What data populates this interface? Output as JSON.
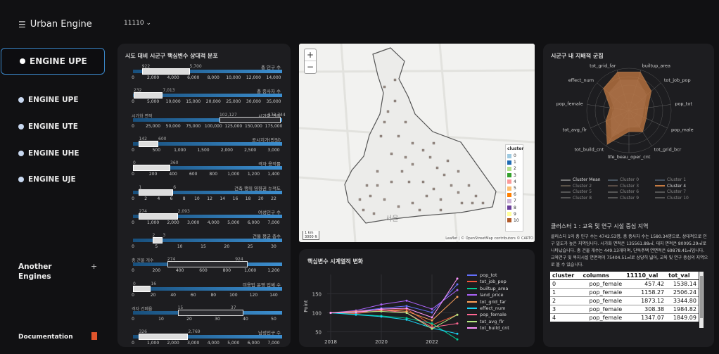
{
  "app": {
    "title": "Urban Engine",
    "code": "11110",
    "code_arrow": "⌄"
  },
  "nav": {
    "active": "ENGINE UPE",
    "items": [
      "ENGINE UPE",
      "ENGINE UTE",
      "ENGINE UHE",
      "ENGINE UJE"
    ],
    "another": "Another Engines",
    "another_plus": "+",
    "documentation": "Documentation"
  },
  "panel1": {
    "title": "시도 대비 시군구 핵심변수 상대적 분포",
    "rows": [
      {
        "label": "총 인구 수",
        "lo": "922",
        "hi": "5,700",
        "lo_frac": 0.06,
        "hi_frac": 0.38,
        "ticks": [
          "0",
          "2,000",
          "4,000",
          "6,000",
          "8,000",
          "10,000",
          "12,000",
          "14,000"
        ]
      },
      {
        "label": "총 종사자 수",
        "lo": "232",
        "hi": "7,013",
        "lo_frac": 0.005,
        "hi_frac": 0.2,
        "ticks": [
          "0",
          "5,000",
          "10,000",
          "15,000",
          "20,000",
          "25,000",
          "30,000",
          "35,000"
        ]
      },
      {
        "label": "시가화 면적",
        "lo": "",
        "hi": "173,744",
        "lo_frac": 0.0,
        "hi_frac": 0.0,
        "ticks": [
          "0",
          "25,000",
          "50,000",
          "75,000",
          "100,000",
          "125,000",
          "150,000",
          "175,000"
        ],
        "range_label": "102,127",
        "range_lo": 0.58,
        "range_hi": 0.99,
        "lead": "시가화 면적"
      },
      {
        "label": "공시지가(만원)",
        "lo": "142",
        "hi": "600",
        "lo_frac": 0.04,
        "hi_frac": 0.17,
        "ticks": [
          "0",
          "500",
          "1,000",
          "1,500",
          "2,000",
          "2,500",
          "3,000"
        ]
      },
      {
        "label": "격자 용적률",
        "lo": "0",
        "hi": "360",
        "lo_frac": 0.0,
        "hi_frac": 0.25,
        "ticks": [
          "0",
          "200",
          "400",
          "600",
          "800",
          "1,000",
          "1,200",
          "1,400"
        ]
      },
      {
        "label": "건축 행위 영향권 누적도",
        "lo": "1",
        "hi": "6",
        "lo_frac": 0.04,
        "hi_frac": 0.27,
        "ticks": [
          "0",
          "2",
          "4",
          "6",
          "8",
          "10",
          "12",
          "14",
          "16",
          "18",
          "20",
          "22"
        ]
      },
      {
        "label": "여성인구 수",
        "lo": "274",
        "hi": "2,093",
        "lo_frac": 0.04,
        "hi_frac": 0.3,
        "ticks": [
          "0",
          "1,000",
          "2,000",
          "3,000",
          "4,000",
          "5,000",
          "6,000",
          "7,000"
        ]
      },
      {
        "label": "건물 평균 층수",
        "lo": "2",
        "hi": "3",
        "lo_frac": 0.13,
        "hi_frac": 0.2,
        "ticks": [
          "0",
          "5",
          "10",
          "15",
          "20",
          "25",
          "30"
        ]
      },
      {
        "label": "",
        "lo": "",
        "hi": "924",
        "lo_frac": 0.0,
        "hi_frac": 0.0,
        "ticks": [
          "0",
          "200",
          "400",
          "600",
          "800",
          "1,000",
          "1,200"
        ],
        "range_label": "274",
        "range_lo": 0.23,
        "range_hi": 0.77,
        "lead": "총 건물 개수"
      },
      {
        "label": "미용업 운영 업체 수",
        "lo": "0",
        "hi": "16",
        "lo_frac": 0.0,
        "hi_frac": 0.12,
        "ticks": [
          "0",
          "20",
          "40",
          "60",
          "80",
          "100",
          "120",
          "140"
        ]
      },
      {
        "label": "",
        "lo": "",
        "hi": "37",
        "lo_frac": 0.0,
        "hi_frac": 0.0,
        "ticks": [
          "0",
          "10",
          "20",
          "30",
          "40",
          "50"
        ],
        "range_label": "15",
        "range_lo": 0.3,
        "range_hi": 0.74,
        "lead": "격자 건폐율"
      },
      {
        "label": "남성인구 수",
        "lo": "326",
        "hi": "2,769",
        "lo_frac": 0.04,
        "hi_frac": 0.37,
        "ticks": [
          "0",
          "1,000",
          "2,000",
          "3,000",
          "4,000",
          "5,000",
          "6,000",
          "7,000"
        ]
      }
    ]
  },
  "map": {
    "zoom_in": "+",
    "zoom_out": "−",
    "legend_title": "cluster",
    "legend": [
      "0",
      "1",
      "2",
      "3",
      "4",
      "5",
      "6",
      "7",
      "8",
      "9",
      "10"
    ],
    "legend_colors": [
      "#9ecae1",
      "#1f6bb4",
      "#b2df8a",
      "#33a02c",
      "#fb9a99",
      "#fdbf6f",
      "#ff7f00",
      "#cab2d6",
      "#6a3d9a",
      "#ffff99",
      "#b15928"
    ],
    "scale": "1 km\n3000 ft",
    "city": "서울",
    "attribution": "Leaflet | © OpenStreetMap contributors © CARTO"
  },
  "timeseries": {
    "title": "핵심변수 시계열적 변화",
    "ylabel": "Point",
    "yticks": [
      "150",
      "100",
      "50"
    ],
    "xticks": [
      "2018",
      "2020",
      "2022"
    ],
    "series": [
      {
        "name": "pop_tot",
        "color": "#636efa"
      },
      {
        "name": "tot_job_pop",
        "color": "#ef553b"
      },
      {
        "name": "builtup_area",
        "color": "#00cc96"
      },
      {
        "name": "land_price",
        "color": "#ab63fa"
      },
      {
        "name": "tot_grid_far",
        "color": "#ffa15a"
      },
      {
        "name": "effect_num",
        "color": "#19d3f3"
      },
      {
        "name": "pop_female",
        "color": "#ff6692"
      },
      {
        "name": "tot_avg_flr",
        "color": "#b6e880"
      },
      {
        "name": "tot_build_cnt",
        "color": "#ff97ff"
      }
    ]
  },
  "radar": {
    "title": "시군구 내 지배적 군집",
    "axes": [
      "builtup_area",
      "tot_job_pop",
      "pop_tot",
      "pop_male",
      "tot_grid_bcr",
      "life_beau_oper_cnt",
      "tot_build_cnt",
      "tot_avg_flr",
      "pop_female",
      "effect_num",
      "tot_grid_far"
    ],
    "legend": [
      {
        "name": "Cluster Mean",
        "color": "#777"
      },
      {
        "name": "Cluster 0",
        "color": "#4a5560"
      },
      {
        "name": "Cluster 1",
        "color": "#44505e"
      },
      {
        "name": "Cluster 2",
        "color": "#5a5248"
      },
      {
        "name": "Cluster 3",
        "color": "#584c46"
      },
      {
        "name": "Cluster 4",
        "color": "#c57a42"
      },
      {
        "name": "Cluster 5",
        "color": "#555"
      },
      {
        "name": "Cluster 6",
        "color": "#555"
      },
      {
        "name": "Cluster 7",
        "color": "#555"
      },
      {
        "name": "Cluster 8",
        "color": "#555"
      },
      {
        "name": "Cluster 9",
        "color": "#555"
      },
      {
        "name": "Cluster 10",
        "color": "#555"
      }
    ]
  },
  "cluster_info": {
    "title": "클러스터 1 : 교육 및 연구 시설 중심 지역",
    "text": "클러스터 1의 총 인구 수는 4742.53명, 총 종사자 수는 1580.34명으로, 상대적으로 인구 밀도가 높은 지역입니다. 시가화 면적은 135561.88㎡, 대지 면적은 80095.29㎡로 나타났습니다. 총 건물 개수는 449.13개이며, 단독주택 연면적은 69878.41㎡입니다. 교육연구 및 복지시설 연면적이 75404.51㎡로 상당히 넓어, 교육 및 연구 중심의 지역으로 볼 수 있습니다."
  },
  "table": {
    "headers": [
      "cluster",
      "columns",
      "11110_val",
      "tot_val"
    ],
    "rows": [
      [
        "0",
        "pop_female",
        "457.42",
        "1538.14"
      ],
      [
        "1",
        "pop_female",
        "1158.27",
        "2506.24"
      ],
      [
        "2",
        "pop_female",
        "1873.12",
        "3344.80"
      ],
      [
        "3",
        "pop_female",
        "308.38",
        "1984.82"
      ],
      [
        "4",
        "pop_female",
        "1347.07",
        "1849.09"
      ]
    ]
  }
}
